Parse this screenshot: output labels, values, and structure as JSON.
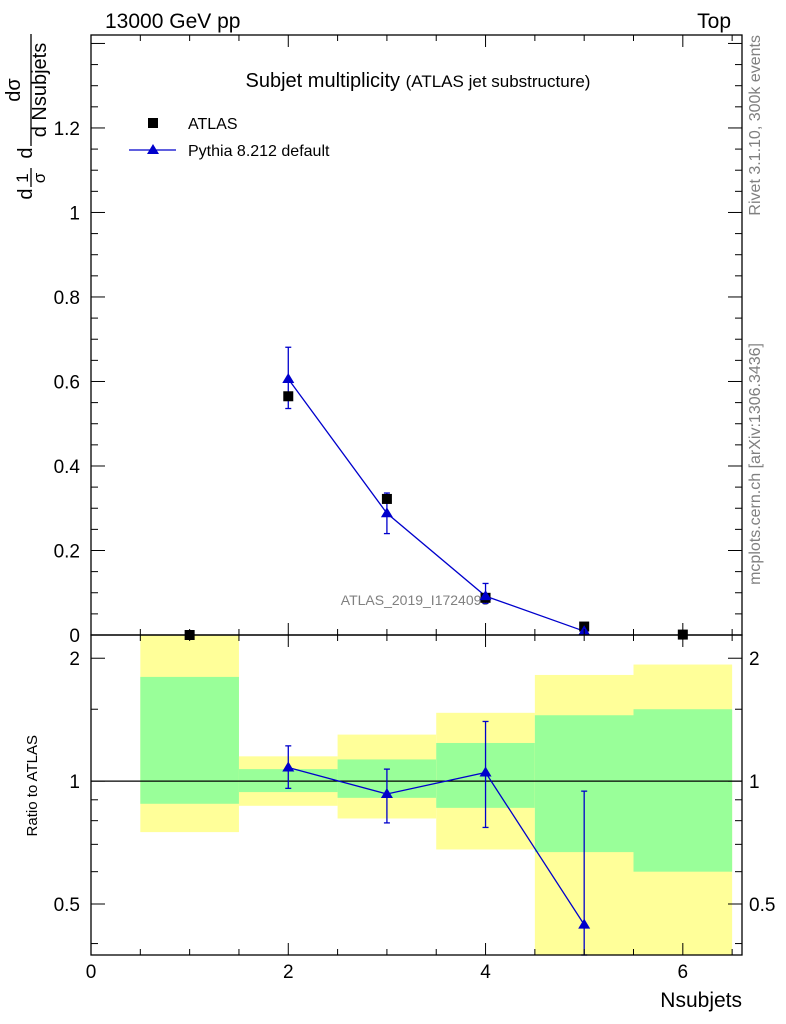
{
  "header": {
    "left": "13000 GeV pp",
    "right": "Top"
  },
  "title": {
    "main": "Subjet multiplicity",
    "sub": "(ATLAS jet substructure)"
  },
  "side": {
    "rivet": "Rivet 3.1.10,  300k events",
    "mcplots": "mcplots.cern.ch [arXiv:1306.3436]"
  },
  "watermark": "ATLAS_2019_I1724098",
  "legend": {
    "data_label": "ATLAS",
    "mc_label": "Pythia 8.212 default"
  },
  "axes": {
    "ylabel_top": {
      "d": "d",
      "sigma": "σ",
      "one": "1",
      "dsigma": "dσ",
      "dvar": "d Nsubjets"
    },
    "ylabel_bottom": "Ratio to ATLAS",
    "xlabel": "Nsubjets"
  },
  "colors": {
    "mc": "#0000cc",
    "data": "#000000",
    "band_inner": "#99ff99",
    "band_outer": "#ffff99"
  },
  "chart_data": [
    {
      "type": "scatter",
      "xlim": [
        0,
        6.6
      ],
      "ylim": [
        0,
        1.42
      ],
      "y_ticks": [
        0,
        0.2,
        0.4,
        0.6,
        0.8,
        1,
        1.2
      ],
      "y_tick_labels": [
        "0",
        "0.2",
        "0.4",
        "0.6",
        "0.8",
        "1",
        "1.2"
      ],
      "series": [
        {
          "name": "ATLAS",
          "x": [
            1,
            2,
            3,
            4,
            5,
            6
          ],
          "y": [
            0.0,
            0.565,
            0.322,
            0.088,
            0.02,
            0.001
          ]
        },
        {
          "name": "Pythia 8.212 default",
          "x": [
            2,
            3,
            4,
            5
          ],
          "y": [
            0.606,
            0.288,
            0.092,
            0.009
          ],
          "err_low": [
            0.07,
            0.048,
            0.017,
            0.004
          ],
          "err_high": [
            0.075,
            0.048,
            0.03,
            0.004
          ]
        }
      ]
    },
    {
      "type": "line",
      "xlim": [
        0,
        6.6
      ],
      "ylim": [
        0.375,
        2.28
      ],
      "y_log": true,
      "y_ticks": [
        0.5,
        1,
        2
      ],
      "y_tick_labels": [
        "0.5",
        "1",
        "2"
      ],
      "x_ticks": [
        0,
        2,
        4,
        6
      ],
      "x_tick_labels": [
        "0",
        "2",
        "4",
        "6"
      ],
      "bins": [
        [
          0.5,
          1.5
        ],
        [
          1.5,
          2.5
        ],
        [
          2.5,
          3.5
        ],
        [
          3.5,
          4.5
        ],
        [
          4.5,
          5.5
        ],
        [
          5.5,
          6.5
        ]
      ],
      "band_inner": [
        [
          0.88,
          1.8
        ],
        [
          0.94,
          1.07
        ],
        [
          0.91,
          1.13
        ],
        [
          0.86,
          1.24
        ],
        [
          0.67,
          1.45
        ],
        [
          0.6,
          1.5
        ]
      ],
      "band_outer": [
        [
          0.75,
          2.3
        ],
        [
          0.87,
          1.15
        ],
        [
          0.81,
          1.3
        ],
        [
          0.68,
          1.47
        ],
        [
          0.3,
          1.82
        ],
        [
          0.3,
          1.93
        ]
      ],
      "series": [
        {
          "name": "Pythia 8.212 default",
          "x": [
            2,
            3,
            4,
            5
          ],
          "y": [
            1.08,
            0.93,
            1.05,
            0.445
          ],
          "err_low": [
            0.12,
            0.14,
            0.28,
            0.25
          ],
          "err_high": [
            0.14,
            0.14,
            0.35,
            0.5
          ]
        }
      ]
    }
  ]
}
